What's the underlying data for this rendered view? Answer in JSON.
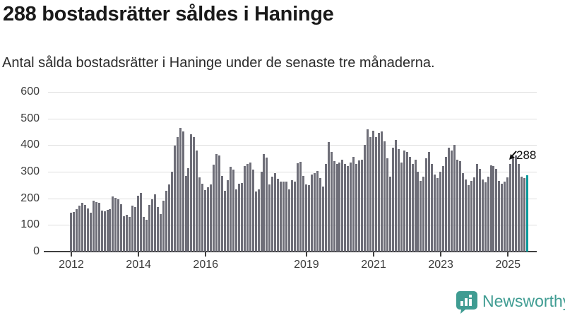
{
  "header": {
    "title": "288 bostadsrätter såldes i Haninge",
    "subtitle": "Antal sålda bostadsrätter i Haninge under de senaste tre månaderna."
  },
  "chart_data": {
    "type": "bar",
    "title": "288 bostadsrätter såldes i Haninge",
    "xlabel": "",
    "ylabel": "",
    "ylim": [
      0,
      600
    ],
    "grid": true,
    "x_start": "2012-01",
    "x_end": "2025-08",
    "x_unit": "month",
    "values": [
      145,
      148,
      158,
      172,
      184,
      175,
      161,
      146,
      190,
      186,
      182,
      154,
      152,
      156,
      160,
      208,
      202,
      197,
      178,
      133,
      138,
      130,
      172,
      166,
      210,
      221,
      130,
      120,
      176,
      196,
      215,
      168,
      142,
      190,
      228,
      252,
      300,
      398,
      430,
      465,
      450,
      285,
      312,
      440,
      430,
      380,
      280,
      255,
      232,
      242,
      252,
      327,
      367,
      360,
      283,
      228,
      267,
      318,
      308,
      234,
      255,
      258,
      320,
      329,
      334,
      308,
      226,
      234,
      300,
      367,
      352,
      252,
      281,
      294,
      274,
      264,
      264,
      264,
      234,
      267,
      264,
      331,
      338,
      283,
      252,
      250,
      290,
      296,
      302,
      275,
      245,
      330,
      412,
      375,
      340,
      330,
      335,
      345,
      330,
      320,
      335,
      355,
      330,
      342,
      345,
      400,
      460,
      430,
      455,
      430,
      445,
      450,
      415,
      350,
      282,
      390,
      420,
      385,
      335,
      380,
      375,
      355,
      330,
      345,
      300,
      265,
      282,
      350,
      375,
      330,
      290,
      275,
      300,
      320,
      355,
      390,
      380,
      400,
      345,
      340,
      295,
      270,
      250,
      265,
      280,
      330,
      310,
      270,
      260,
      282,
      325,
      320,
      310,
      265,
      255,
      262,
      280,
      330,
      355,
      360,
      330,
      282,
      275,
      288
    ],
    "highlight_last": true,
    "last_value_label": "288",
    "yticks": [
      0,
      100,
      200,
      300,
      400,
      500,
      600
    ],
    "xticks": [
      {
        "label": "2012",
        "month_index": 0
      },
      {
        "label": "2014",
        "month_index": 24
      },
      {
        "label": "2016",
        "month_index": 48
      },
      {
        "label": "2019",
        "month_index": 84
      },
      {
        "label": "2021",
        "month_index": 108
      },
      {
        "label": "2023",
        "month_index": 132
      },
      {
        "label": "2025",
        "month_index": 156
      }
    ],
    "colors": {
      "bar": "#6e6e78",
      "highlight": "#0d9b9c",
      "grid": "#dedede",
      "axis": "#3f3f3f",
      "tick_label": "#3b3b3b"
    }
  },
  "annotation": {
    "label": "288"
  },
  "footer": {
    "brand": "Newsworthy",
    "brand_color": "#3f9c92",
    "logo_icon": "bar-chart-speech-bubble"
  }
}
